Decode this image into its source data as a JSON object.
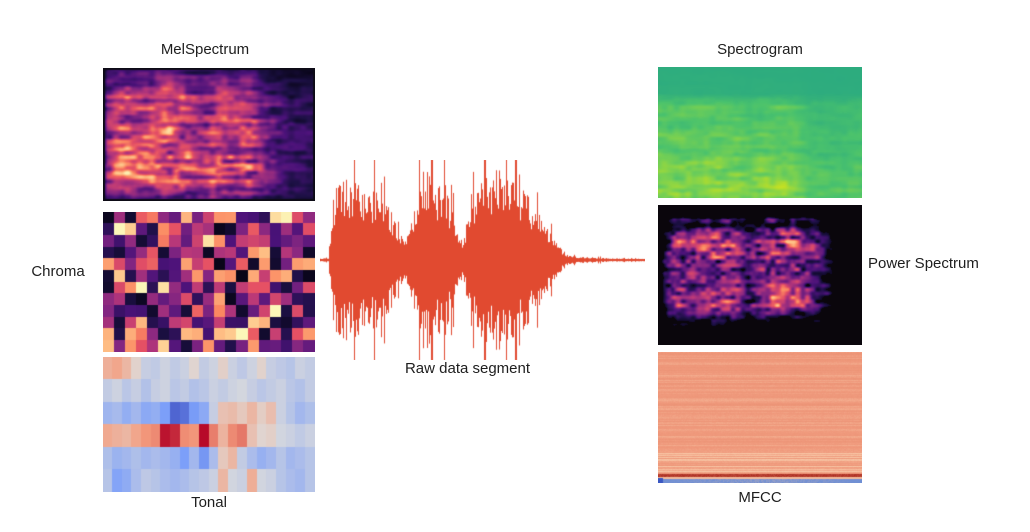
{
  "labels": {
    "melspectrum": "MelSpectrum",
    "chroma": "Chroma",
    "tonal": "Tonal",
    "raw": "Raw data segment",
    "spectrogram": "Spectrogram",
    "power": "Power Spectrum",
    "mfcc": "MFCC"
  },
  "colors": {
    "background": "#ffffff",
    "label_text": "#1e1e1e",
    "waveform": "#e14a30"
  },
  "colormaps": {
    "magma": [
      [
        0,
        0,
        0,
        4
      ],
      [
        0.14,
        28,
        16,
        68
      ],
      [
        0.25,
        74,
        18,
        121
      ],
      [
        0.38,
        129,
        37,
        129
      ],
      [
        0.5,
        181,
        54,
        122
      ],
      [
        0.64,
        229,
        80,
        100
      ],
      [
        0.75,
        251,
        135,
        97
      ],
      [
        0.88,
        254,
        194,
        135
      ],
      [
        1,
        252,
        253,
        191
      ]
    ],
    "viridis": [
      [
        0,
        68,
        1,
        84
      ],
      [
        0.14,
        70,
        50,
        127
      ],
      [
        0.25,
        54,
        92,
        141
      ],
      [
        0.38,
        39,
        127,
        142
      ],
      [
        0.5,
        31,
        161,
        135
      ],
      [
        0.64,
        74,
        194,
        109
      ],
      [
        0.75,
        122,
        209,
        81
      ],
      [
        0.88,
        189,
        223,
        38
      ],
      [
        1,
        253,
        231,
        37
      ]
    ],
    "coolwarm": [
      [
        0,
        59,
        76,
        192
      ],
      [
        0.25,
        124,
        159,
        249
      ],
      [
        0.5,
        221,
        220,
        219
      ],
      [
        0.75,
        245,
        156,
        125
      ],
      [
        1,
        180,
        4,
        38
      ]
    ]
  },
  "panels": {
    "melspectrum": {
      "type": "noise-spectrogram",
      "colormap": "magma",
      "seed": 11,
      "col_envelope": [
        [
          0,
          0.12
        ],
        [
          0.02,
          0.7
        ],
        [
          0.08,
          1.0
        ],
        [
          0.2,
          0.92
        ],
        [
          0.3,
          1.0
        ],
        [
          0.4,
          0.9
        ],
        [
          0.46,
          0.72
        ],
        [
          0.55,
          1.0
        ],
        [
          0.62,
          0.95
        ],
        [
          0.7,
          0.85
        ],
        [
          0.78,
          0.5
        ],
        [
          0.88,
          0.32
        ],
        [
          1,
          0.28
        ]
      ],
      "row_envelope": [
        [
          0,
          0.3
        ],
        [
          0.06,
          0.45
        ],
        [
          0.12,
          0.55
        ],
        [
          0.22,
          0.8
        ],
        [
          0.32,
          0.72
        ],
        [
          0.45,
          0.88
        ],
        [
          0.6,
          0.82
        ],
        [
          0.75,
          0.95
        ],
        [
          0.88,
          0.8
        ],
        [
          0.96,
          0.55
        ],
        [
          1,
          0.35
        ]
      ],
      "border_color": "#0d0b16"
    },
    "chroma": {
      "type": "pixel-grid",
      "colormap": "magma",
      "seed": 23,
      "cols": 19,
      "rows": 12
    },
    "tonal": {
      "type": "value-grid",
      "colormap": "coolwarm",
      "values": [
        [
          0.35,
          0.42,
          0.3,
          0.08,
          -0.12,
          -0.15,
          -0.08,
          -0.15,
          -0.1,
          0.06,
          -0.14,
          -0.08,
          0.1,
          -0.1,
          -0.16,
          -0.08,
          0.08,
          -0.12,
          -0.16,
          -0.2,
          -0.1,
          -0.14
        ],
        [
          -0.14,
          -0.08,
          -0.18,
          -0.12,
          -0.22,
          -0.12,
          -0.08,
          -0.18,
          -0.14,
          -0.22,
          -0.18,
          -0.1,
          -0.14,
          -0.08,
          -0.05,
          -0.12,
          -0.18,
          -0.14,
          -0.1,
          -0.18,
          -0.22,
          -0.14
        ],
        [
          -0.32,
          -0.28,
          -0.38,
          -0.3,
          -0.42,
          -0.38,
          -0.5,
          -0.85,
          -0.78,
          -0.52,
          -0.42,
          -0.12,
          0.22,
          0.26,
          0.16,
          0.3,
          0.12,
          0.24,
          -0.1,
          -0.2,
          -0.3,
          -0.24
        ],
        [
          0.4,
          0.34,
          0.3,
          0.42,
          0.52,
          0.56,
          0.95,
          0.88,
          0.55,
          0.52,
          0.98,
          0.6,
          0.32,
          0.56,
          0.62,
          0.22,
          0.06,
          0.1,
          -0.06,
          -0.1,
          -0.15,
          -0.1
        ],
        [
          -0.24,
          -0.34,
          -0.3,
          -0.24,
          -0.3,
          -0.26,
          -0.3,
          -0.36,
          -0.5,
          -0.3,
          -0.55,
          -0.26,
          0.16,
          0.3,
          -0.14,
          -0.26,
          -0.36,
          -0.3,
          -0.2,
          -0.3,
          -0.26,
          -0.2
        ],
        [
          -0.2,
          -0.46,
          -0.4,
          -0.26,
          -0.16,
          -0.2,
          -0.26,
          -0.3,
          -0.26,
          -0.2,
          -0.16,
          -0.1,
          0.3,
          -0.06,
          -0.1,
          0.36,
          -0.06,
          -0.1,
          -0.2,
          -0.26,
          -0.3,
          -0.2
        ]
      ]
    },
    "raw_waveform": {
      "type": "waveform",
      "color": "#e14a30",
      "seed": 5,
      "envelope": [
        [
          0,
          0.015
        ],
        [
          0.025,
          0.02
        ],
        [
          0.035,
          0.55
        ],
        [
          0.05,
          0.75
        ],
        [
          0.07,
          0.9
        ],
        [
          0.1,
          0.82
        ],
        [
          0.13,
          0.75
        ],
        [
          0.16,
          0.72
        ],
        [
          0.19,
          0.8
        ],
        [
          0.22,
          0.5
        ],
        [
          0.24,
          0.28
        ],
        [
          0.26,
          0.26
        ],
        [
          0.28,
          0.45
        ],
        [
          0.3,
          0.75
        ],
        [
          0.32,
          0.95
        ],
        [
          0.35,
          0.8
        ],
        [
          0.38,
          0.82
        ],
        [
          0.4,
          0.6
        ],
        [
          0.42,
          0.35
        ],
        [
          0.44,
          0.18
        ],
        [
          0.45,
          0.4
        ],
        [
          0.47,
          0.6
        ],
        [
          0.49,
          0.9
        ],
        [
          0.52,
          0.85
        ],
        [
          0.55,
          1.0
        ],
        [
          0.58,
          0.9
        ],
        [
          0.61,
          0.8
        ],
        [
          0.64,
          0.65
        ],
        [
          0.67,
          0.5
        ],
        [
          0.7,
          0.35
        ],
        [
          0.72,
          0.22
        ],
        [
          0.74,
          0.12
        ],
        [
          0.76,
          0.06
        ],
        [
          0.79,
          0.035
        ],
        [
          0.83,
          0.03
        ],
        [
          0.88,
          0.02
        ],
        [
          0.93,
          0.015
        ],
        [
          1,
          0.012
        ]
      ]
    },
    "spectrogram": {
      "type": "noise-spectrogram",
      "colormap": "viridis",
      "seed": 31,
      "base": 0.54,
      "range": 0.42,
      "col_envelope": [
        [
          0,
          1
        ],
        [
          0.05,
          1.02
        ],
        [
          0.4,
          1
        ],
        [
          0.45,
          0.8
        ],
        [
          0.5,
          1
        ],
        [
          0.66,
          1
        ],
        [
          0.74,
          0.55
        ],
        [
          0.88,
          0.5
        ],
        [
          1,
          0.62
        ]
      ],
      "row_envelope": [
        [
          0,
          0.03
        ],
        [
          0.2,
          0.06
        ],
        [
          0.3,
          0.5
        ],
        [
          0.42,
          0.42
        ],
        [
          0.52,
          0.62
        ],
        [
          0.62,
          0.5
        ],
        [
          0.72,
          0.72
        ],
        [
          0.82,
          0.78
        ],
        [
          0.92,
          0.9
        ],
        [
          1,
          0.72
        ]
      ]
    },
    "power_spectrum": {
      "type": "blob-spectrum",
      "colormap": "magma",
      "seed": 47,
      "background": "#0a060c",
      "threshold": 0.22,
      "col_envelope": [
        [
          0,
          0.05
        ],
        [
          0.03,
          0.45
        ],
        [
          0.08,
          0.85
        ],
        [
          0.18,
          0.8
        ],
        [
          0.28,
          0.95
        ],
        [
          0.38,
          0.85
        ],
        [
          0.44,
          0.6
        ],
        [
          0.48,
          0.75
        ],
        [
          0.56,
          0.95
        ],
        [
          0.66,
          0.9
        ],
        [
          0.76,
          0.7
        ],
        [
          0.82,
          0.45
        ],
        [
          0.9,
          0.12
        ],
        [
          1,
          0.02
        ]
      ],
      "row_envelope": [
        [
          0,
          0
        ],
        [
          0.07,
          0.05
        ],
        [
          0.1,
          0.55
        ],
        [
          0.14,
          0.4
        ],
        [
          0.2,
          0.8
        ],
        [
          0.3,
          0.95
        ],
        [
          0.4,
          0.8
        ],
        [
          0.5,
          0.75
        ],
        [
          0.6,
          0.85
        ],
        [
          0.72,
          0.9
        ],
        [
          0.8,
          0.5
        ],
        [
          0.88,
          0.15
        ],
        [
          1,
          0
        ]
      ]
    },
    "mfcc": {
      "type": "stripe-field",
      "seed": 61,
      "base_color": "#f09a7d",
      "light_color": "#f8c9a8",
      "dark_color": "#e68a6c",
      "red_line_color": "#aa2a1e",
      "blue_line_color": "#6f8fd4",
      "deep_blue_color": "#3a57c2"
    }
  }
}
